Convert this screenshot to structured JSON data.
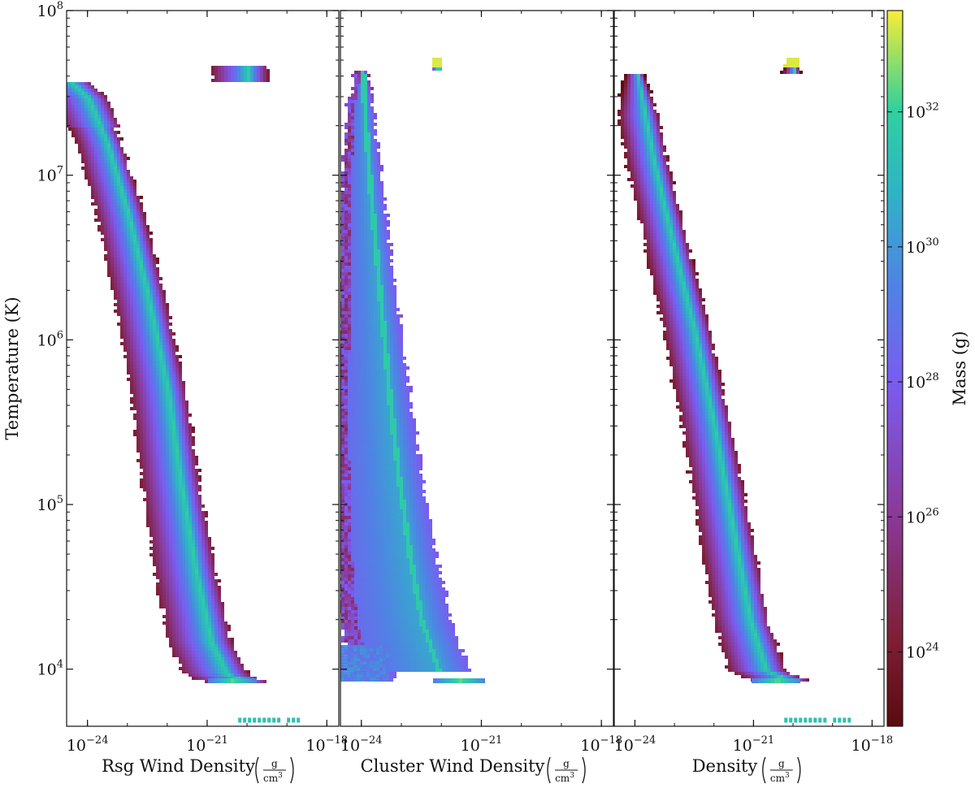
{
  "chart_data": {
    "type": "heatmap",
    "shared_y": {
      "label": "Temperature (K)",
      "scale": "log",
      "ylim": [
        4500,
        100000000
      ],
      "ticks": [
        {
          "value": 10000,
          "base": "10",
          "exp": "4"
        },
        {
          "value": 100000,
          "base": "10",
          "exp": "5"
        },
        {
          "value": 1000000,
          "base": "10",
          "exp": "6"
        },
        {
          "value": 10000000,
          "base": "10",
          "exp": "7"
        },
        {
          "value": 100000000,
          "base": "10",
          "exp": "8"
        }
      ]
    },
    "x_scale": "log",
    "xlim": [
      3e-25,
      2e-18
    ],
    "x_ticks": [
      {
        "value": 1e-24,
        "base": "10",
        "exp": "−24"
      },
      {
        "value": 1e-21,
        "base": "10",
        "exp": "−21"
      },
      {
        "value": 1e-18,
        "base": "10",
        "exp": "−18"
      }
    ],
    "units": {
      "numerator": "g",
      "denominator": "cm",
      "denominator_exp": "3"
    },
    "panels": [
      {
        "xlabel": "Rsg Wind Density",
        "ridge": [
          {
            "rho": 4e-25,
            "T": 37000000
          },
          {
            "rho": 1e-24,
            "T": 30000000
          },
          {
            "rho": 3e-24,
            "T": 16000000
          },
          {
            "rho": 1e-23,
            "T": 6000000
          },
          {
            "rho": 3e-23,
            "T": 2000000
          },
          {
            "rho": 1e-22,
            "T": 500000
          },
          {
            "rho": 2e-22,
            "T": 150000
          },
          {
            "rho": 5e-22,
            "T": 40000
          },
          {
            "rho": 1.2e-21,
            "T": 15000
          },
          {
            "rho": 3e-21,
            "T": 9500
          },
          {
            "rho": 1e-20,
            "T": 8500
          }
        ],
        "floor_T": 8500,
        "floor_end_rho": 1.5e-20,
        "outliers_T": 4900,
        "outliers_rho_range": [
          6e-21,
          3e-19
        ]
      },
      {
        "xlabel": "Cluster Wind Density",
        "apex": {
          "rho": 1.1e-24,
          "T": 52000000
        },
        "ridge": [
          {
            "rho": 1e-24,
            "T": 45000000
          },
          {
            "rho": 1.2e-24,
            "T": 20000000
          },
          {
            "rho": 1.6e-24,
            "T": 8000000
          },
          {
            "rho": 2.3e-24,
            "T": 3000000
          },
          {
            "rho": 3.5e-24,
            "T": 1000000
          },
          {
            "rho": 5e-24,
            "T": 400000
          },
          {
            "rho": 8e-24,
            "T": 150000
          },
          {
            "rho": 1.5e-23,
            "T": 50000
          },
          {
            "rho": 3e-23,
            "T": 20000
          },
          {
            "rho": 8e-23,
            "T": 10000
          }
        ],
        "floor_T": 8500,
        "floor_end_rho": 1.2e-21,
        "low_density_shelf_T_range": [
          8500,
          14000
        ]
      },
      {
        "xlabel": "Density",
        "apex": {
          "rho": 1.1e-24,
          "T": 52000000
        },
        "ridge": [
          {
            "rho": 1.1e-24,
            "T": 42000000
          },
          {
            "rho": 3e-24,
            "T": 12000000
          },
          {
            "rho": 1e-23,
            "T": 3500000
          },
          {
            "rho": 3e-23,
            "T": 1200000
          },
          {
            "rho": 1e-22,
            "T": 300000
          },
          {
            "rho": 3e-22,
            "T": 70000
          },
          {
            "rho": 8e-22,
            "T": 20000
          },
          {
            "rho": 2e-21,
            "T": 10000
          },
          {
            "rho": 1e-20,
            "T": 8500
          }
        ],
        "floor_T": 8500,
        "floor_end_rho": 1.5e-20,
        "outliers_T": 4900,
        "outliers_rho_range": [
          6e-21,
          3e-19
        ]
      }
    ],
    "colorbar": {
      "label": "Mass (g)",
      "scale": "log",
      "colormap": "viridis-to-dark-red",
      "range_log10": [
        22.9,
        33.5
      ],
      "ticks": [
        {
          "value": 1e+24,
          "base": "10",
          "exp": "24"
        },
        {
          "value": 1e+26,
          "base": "10",
          "exp": "26"
        },
        {
          "value": 1e+28,
          "base": "10",
          "exp": "28"
        },
        {
          "value": 1e+30,
          "base": "10",
          "exp": "30"
        },
        {
          "value": 1e+32,
          "base": "10",
          "exp": "32"
        }
      ]
    }
  }
}
